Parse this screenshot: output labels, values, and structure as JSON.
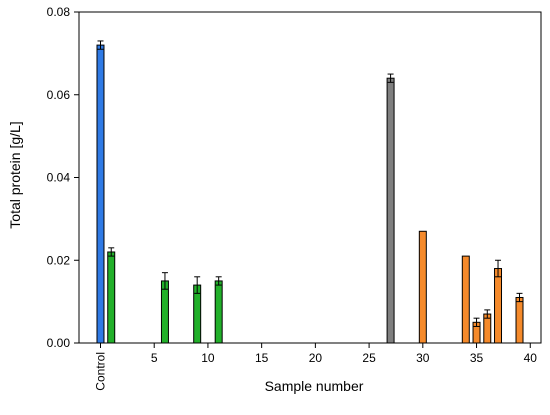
{
  "chart_data": {
    "type": "bar",
    "title": "",
    "xlabel": "Sample number",
    "ylabel": "Total protein [g/L]",
    "xlim": [
      -2,
      41
    ],
    "ylim": [
      0,
      0.08
    ],
    "x_ticks": [
      {
        "value": 0,
        "label": "Control"
      },
      {
        "value": 5,
        "label": "5"
      },
      {
        "value": 10,
        "label": "10"
      },
      {
        "value": 15,
        "label": "15"
      },
      {
        "value": 20,
        "label": "20"
      },
      {
        "value": 25,
        "label": "25"
      },
      {
        "value": 30,
        "label": "30"
      },
      {
        "value": 35,
        "label": "35"
      },
      {
        "value": 40,
        "label": "40"
      }
    ],
    "y_ticks": [
      {
        "value": 0,
        "label": "0.00"
      },
      {
        "value": 0.02,
        "label": "0.02"
      },
      {
        "value": 0.04,
        "label": "0.04"
      },
      {
        "value": 0.06,
        "label": "0.06"
      },
      {
        "value": 0.08,
        "label": "0.08"
      }
    ],
    "grid": false,
    "colors": {
      "blue": "#2f7ae5",
      "green": "#22b02a",
      "gray": "#7f7f7f",
      "orange": "#f58a2b"
    },
    "bars": [
      {
        "x": 0,
        "value": 0.072,
        "error": 0.001,
        "color": "blue"
      },
      {
        "x": 1,
        "value": 0.022,
        "error": 0.001,
        "color": "green"
      },
      {
        "x": 6,
        "value": 0.015,
        "error": 0.002,
        "color": "green"
      },
      {
        "x": 9,
        "value": 0.014,
        "error": 0.002,
        "color": "green"
      },
      {
        "x": 11,
        "value": 0.015,
        "error": 0.001,
        "color": "green"
      },
      {
        "x": 27,
        "value": 0.064,
        "error": 0.001,
        "color": "gray"
      },
      {
        "x": 30,
        "value": 0.027,
        "error": null,
        "color": "orange"
      },
      {
        "x": 34,
        "value": 0.021,
        "error": null,
        "color": "orange"
      },
      {
        "x": 35,
        "value": 0.005,
        "error": 0.001,
        "color": "orange"
      },
      {
        "x": 36,
        "value": 0.007,
        "error": 0.001,
        "color": "orange"
      },
      {
        "x": 37,
        "value": 0.018,
        "error": 0.002,
        "color": "orange"
      },
      {
        "x": 39,
        "value": 0.011,
        "error": 0.001,
        "color": "orange"
      }
    ]
  }
}
